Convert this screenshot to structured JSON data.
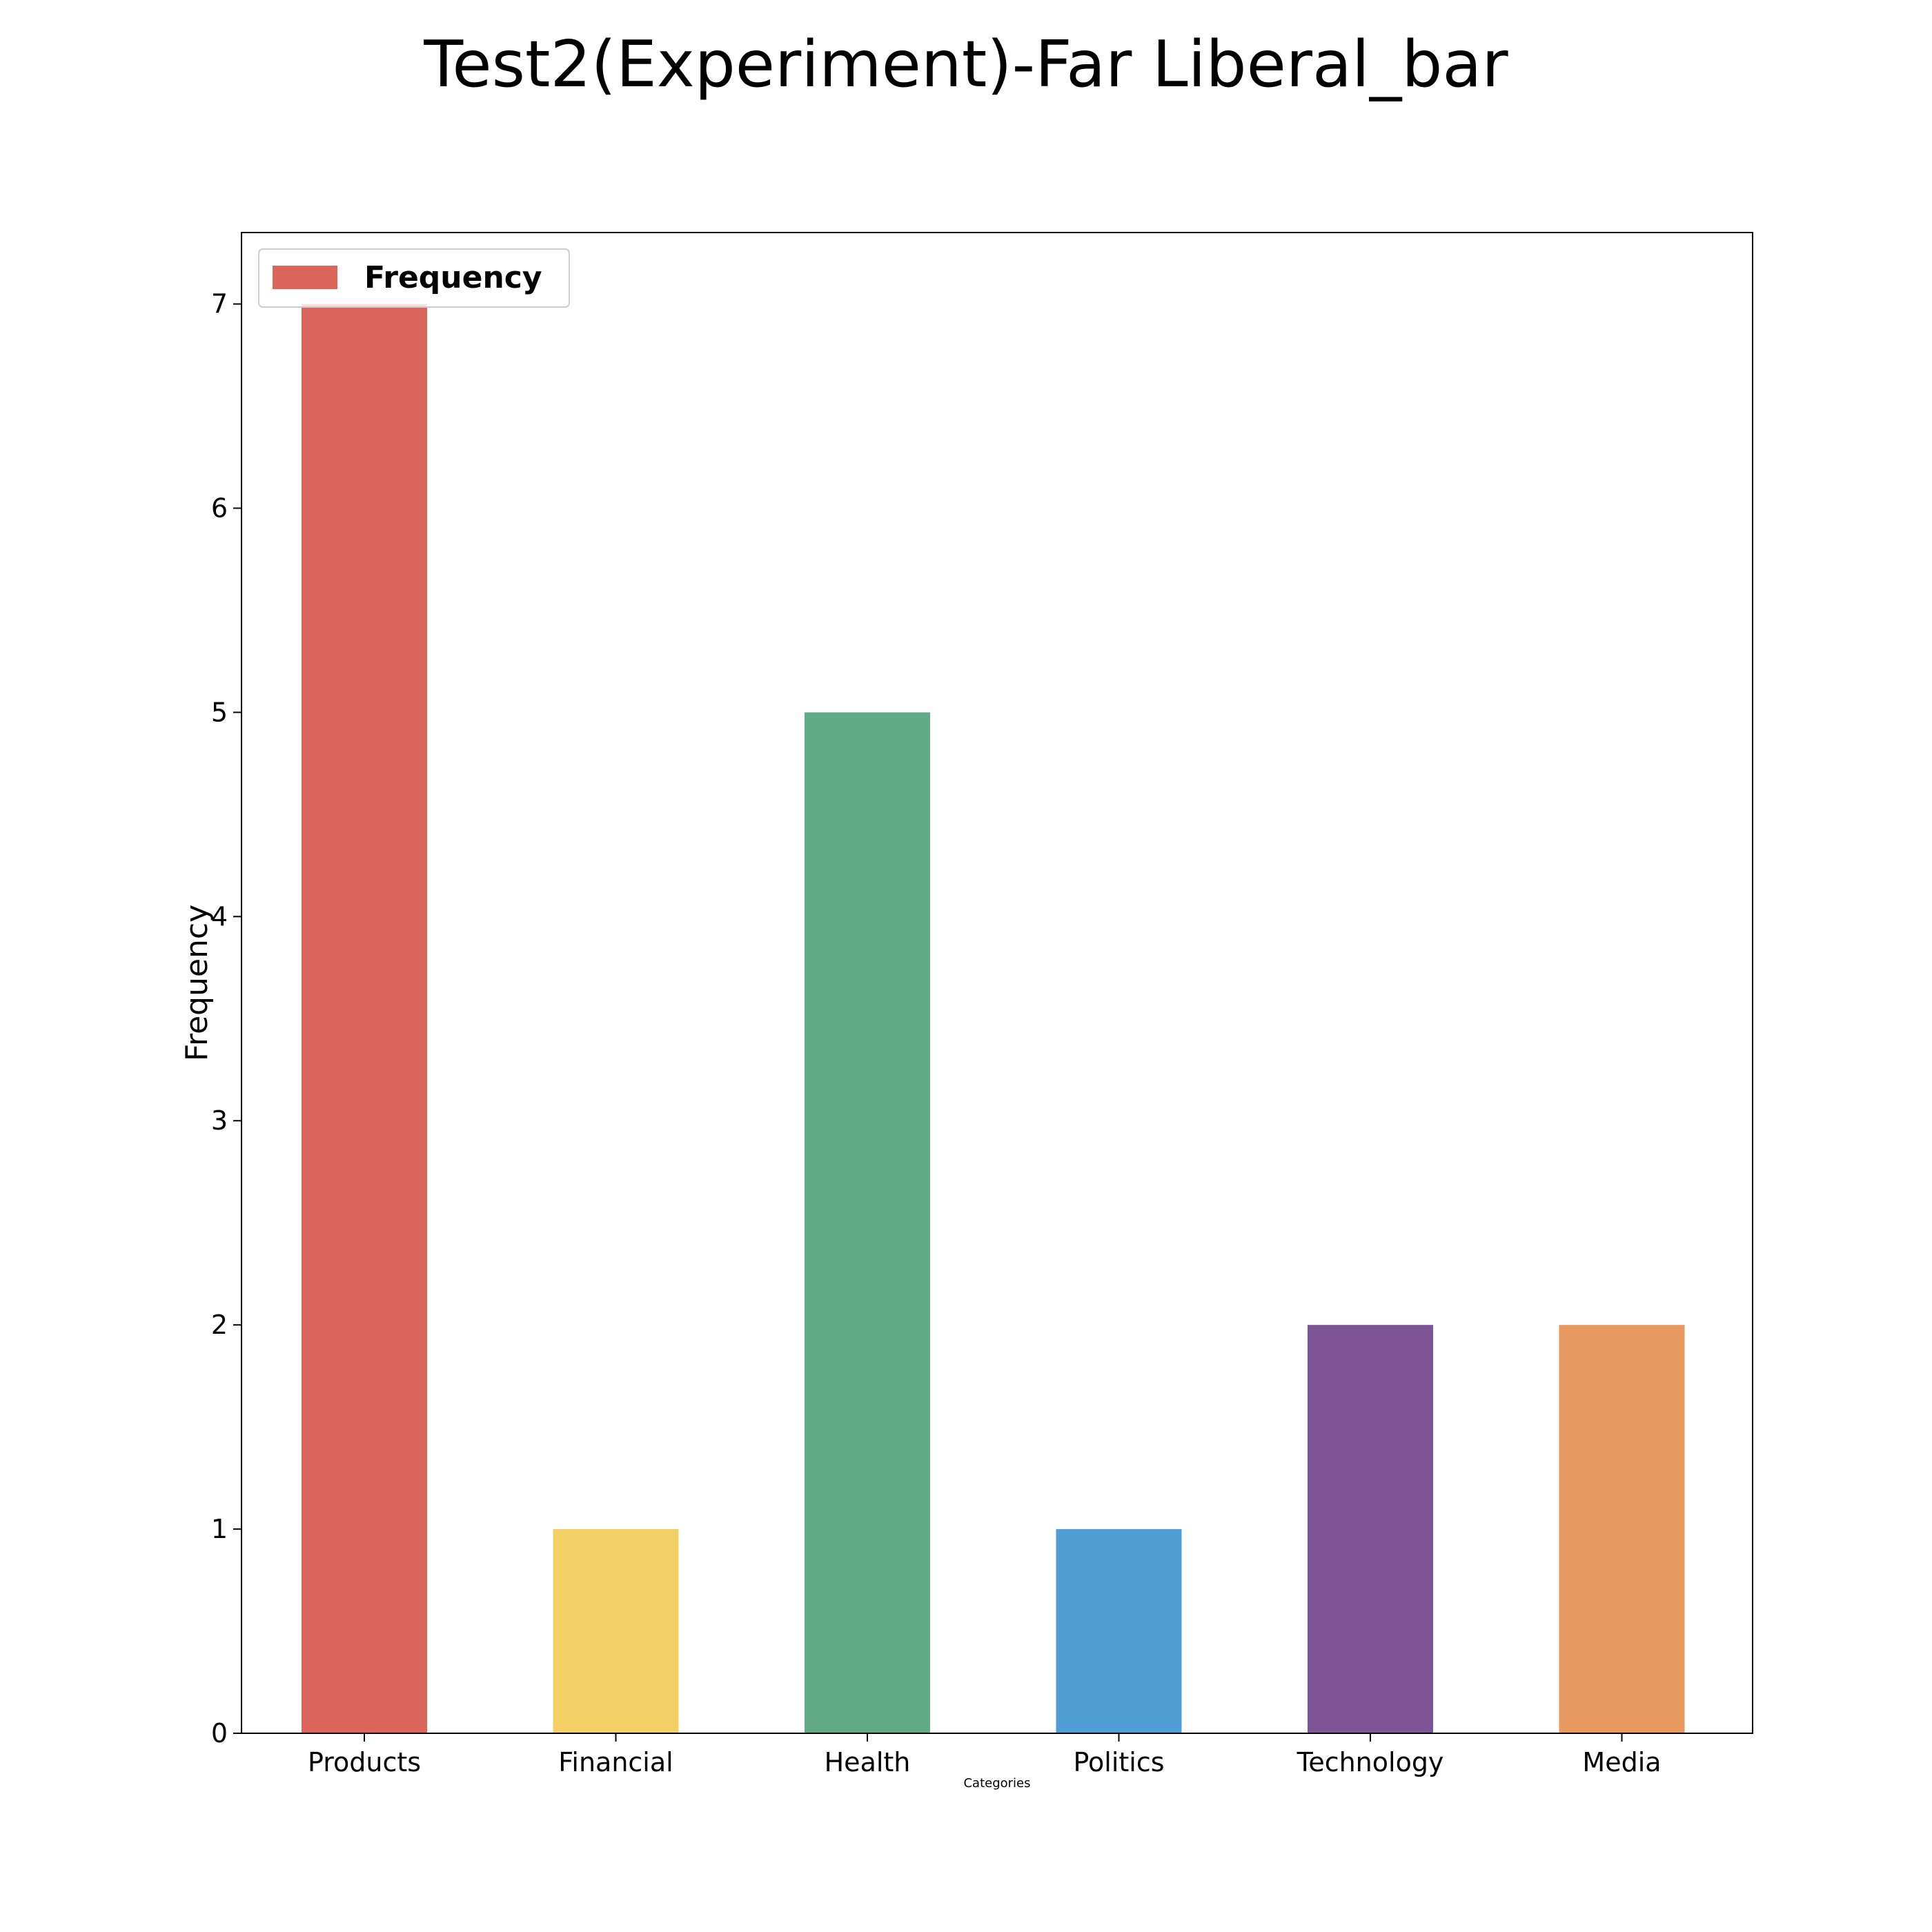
{
  "chart_data": {
    "type": "bar",
    "title": "Test2(Experiment)-Far Liberal_bar",
    "xlabel": "Categories",
    "ylabel": "Frequency",
    "categories": [
      "Products",
      "Financial",
      "Health",
      "Politics",
      "Technology",
      "Media"
    ],
    "series": [
      {
        "name": "Frequency",
        "values": [
          7,
          1,
          5,
          1,
          2,
          2
        ]
      }
    ],
    "bar_colors": [
      "#db655a",
      "#f4cf64",
      "#61ab89",
      "#519dd6",
      "#7d5496",
      "#e79960"
    ],
    "ylim": [
      0,
      7.35
    ],
    "yticks": [
      0,
      1,
      2,
      3,
      4,
      5,
      6,
      7
    ],
    "grid": false,
    "legend_position": "upper left"
  }
}
